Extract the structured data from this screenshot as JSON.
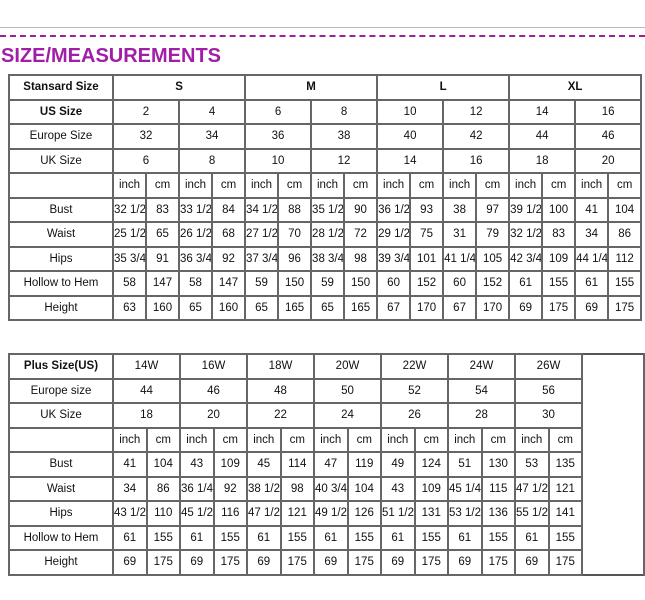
{
  "title": "SIZE/MEASUREMENTS",
  "colors": {
    "title": "#a21ea8",
    "divider": "#a0209a"
  },
  "standard_table": {
    "header": [
      "Stansard Size",
      "S",
      "M",
      "L",
      "XL"
    ],
    "us_size": {
      "label": "US Size",
      "values": [
        "2",
        "4",
        "6",
        "8",
        "10",
        "12",
        "14",
        "16"
      ]
    },
    "europe_size": {
      "label": "Europe Size",
      "values": [
        "32",
        "34",
        "36",
        "38",
        "40",
        "42",
        "44",
        "46"
      ]
    },
    "uk_size": {
      "label": "UK Size",
      "values": [
        "6",
        "8",
        "10",
        "12",
        "14",
        "16",
        "18",
        "20"
      ]
    },
    "units": [
      "inch",
      "cm",
      "inch",
      "cm",
      "inch",
      "cm",
      "inch",
      "cm",
      "inch",
      "cm",
      "inch",
      "cm",
      "inch",
      "cm",
      "inch",
      "cm"
    ],
    "measurements": [
      {
        "label": "Bust",
        "values": [
          "32 1/2",
          "83",
          "33 1/2",
          "84",
          "34 1/2",
          "88",
          "35 1/2",
          "90",
          "36 1/2",
          "93",
          "38",
          "97",
          "39 1/2",
          "100",
          "41",
          "104"
        ]
      },
      {
        "label": "Waist",
        "values": [
          "25 1/2",
          "65",
          "26 1/2",
          "68",
          "27 1/2",
          "70",
          "28 1/2",
          "72",
          "29 1/2",
          "75",
          "31",
          "79",
          "32 1/2",
          "83",
          "34",
          "86"
        ]
      },
      {
        "label": "Hips",
        "values": [
          "35 3/4",
          "91",
          "36 3/4",
          "92",
          "37 3/4",
          "96",
          "38 3/4",
          "98",
          "39 3/4",
          "101",
          "41 1/4",
          "105",
          "42 3/4",
          "109",
          "44 1/4",
          "112"
        ]
      },
      {
        "label": "Hollow to Hem",
        "values": [
          "58",
          "147",
          "58",
          "147",
          "59",
          "150",
          "59",
          "150",
          "60",
          "152",
          "60",
          "152",
          "61",
          "155",
          "61",
          "155"
        ]
      },
      {
        "label": "Height",
        "values": [
          "63",
          "160",
          "65",
          "160",
          "65",
          "165",
          "65",
          "165",
          "67",
          "170",
          "67",
          "170",
          "69",
          "175",
          "69",
          "175"
        ]
      }
    ]
  },
  "plus_table": {
    "header": {
      "label": "Plus Size(US)",
      "values": [
        "14W",
        "16W",
        "18W",
        "20W",
        "22W",
        "24W",
        "26W"
      ]
    },
    "europe_size": {
      "label": "Europe size",
      "values": [
        "44",
        "46",
        "48",
        "50",
        "52",
        "54",
        "56"
      ]
    },
    "uk_size": {
      "label": "UK Size",
      "values": [
        "18",
        "20",
        "22",
        "24",
        "26",
        "28",
        "30"
      ]
    },
    "units": [
      "inch",
      "cm",
      "inch",
      "cm",
      "inch",
      "cm",
      "inch",
      "cm",
      "inch",
      "cm",
      "inch",
      "cm",
      "inch",
      "cm"
    ],
    "measurements": [
      {
        "label": "Bust",
        "values": [
          "41",
          "104",
          "43",
          "109",
          "45",
          "114",
          "47",
          "119",
          "49",
          "124",
          "51",
          "130",
          "53",
          "135"
        ]
      },
      {
        "label": "Waist",
        "values": [
          "34",
          "86",
          "36 1/4",
          "92",
          "38 1/2",
          "98",
          "40 3/4",
          "104",
          "43",
          "109",
          "45 1/4",
          "115",
          "47 1/2",
          "121"
        ]
      },
      {
        "label": "Hips",
        "values": [
          "43 1/2",
          "110",
          "45 1/2",
          "116",
          "47 1/2",
          "121",
          "49 1/2",
          "126",
          "51 1/2",
          "131",
          "53 1/2",
          "136",
          "55 1/2",
          "141"
        ]
      },
      {
        "label": "Hollow to Hem",
        "values": [
          "61",
          "155",
          "61",
          "155",
          "61",
          "155",
          "61",
          "155",
          "61",
          "155",
          "61",
          "155",
          "61",
          "155"
        ]
      },
      {
        "label": "Height",
        "values": [
          "69",
          "175",
          "69",
          "175",
          "69",
          "175",
          "69",
          "175",
          "69",
          "175",
          "69",
          "175",
          "69",
          "175"
        ]
      }
    ]
  }
}
